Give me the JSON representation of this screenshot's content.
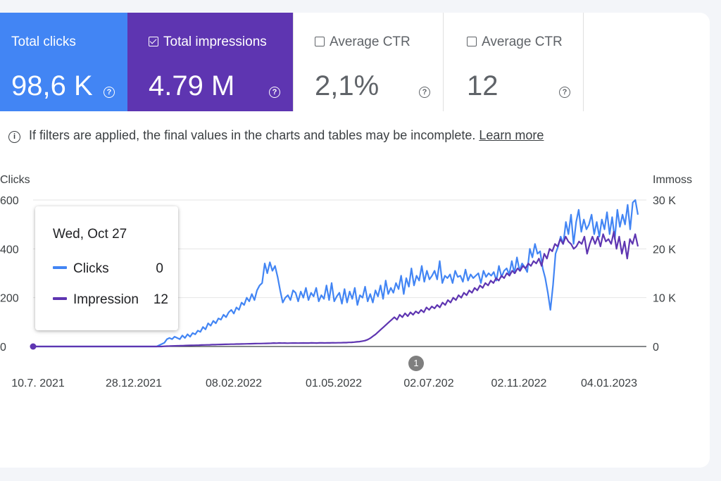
{
  "metrics": {
    "clicks": {
      "label": "Total clicks",
      "value": "98,6 K",
      "checked": true
    },
    "impressions": {
      "label": "Total impressions",
      "value": "4.79 M",
      "checked": true
    },
    "ctr": {
      "label": "Average CTR",
      "value": "2,1%",
      "checked": false
    },
    "position": {
      "label": "Average CTR",
      "value": "12",
      "checked": false
    }
  },
  "notice": {
    "text": "If filters are applied, the final values in the charts and tables may be incomplete.",
    "link": "Learn more"
  },
  "tooltip": {
    "date": "Wed, Oct 27",
    "rows": [
      {
        "name": "Clicks",
        "value": "0"
      },
      {
        "name": "Impression",
        "value": "12"
      }
    ]
  },
  "annotation_marker": "1",
  "colors": {
    "clicks": "#4285f4",
    "impressions": "#5e35b1"
  },
  "chart_data": {
    "type": "line",
    "left_axis": {
      "title": "Clicks",
      "ticks": [
        "600",
        "400",
        "200",
        "0"
      ],
      "ylim": [
        0,
        600
      ]
    },
    "right_axis": {
      "title": "Immoss",
      "ticks": [
        "30 K",
        "20 K",
        "10 K",
        "0"
      ],
      "ylim": [
        0,
        30000
      ]
    },
    "x_tick_labels": [
      "10.7. 2021",
      "28.12.2021",
      "08.02.2022",
      "01.05.2022",
      "02.07.202",
      "02.11.2022",
      "04.01.2023"
    ],
    "series": [
      {
        "name": "Clicks",
        "axis": "left",
        "values": [
          0,
          0,
          0,
          0,
          0,
          0,
          0,
          0,
          0,
          0,
          0,
          0,
          0,
          0,
          0,
          0,
          0,
          0,
          0,
          0,
          0,
          0,
          0,
          0,
          0,
          0,
          0,
          0,
          0,
          0,
          0,
          0,
          0,
          0,
          0,
          0,
          0,
          0,
          0,
          0,
          0,
          0,
          0,
          0,
          0,
          0,
          0,
          0,
          0,
          5,
          10,
          15,
          30,
          35,
          30,
          40,
          35,
          30,
          45,
          35,
          50,
          40,
          55,
          50,
          65,
          60,
          80,
          70,
          95,
          85,
          105,
          95,
          115,
          110,
          130,
          120,
          140,
          150,
          135,
          160,
          150,
          180,
          170,
          200,
          185,
          215,
          190,
          230,
          250,
          260,
          340,
          300,
          345,
          310,
          330,
          285,
          230,
          180,
          200,
          210,
          190,
          230,
          220,
          185,
          225,
          200,
          240,
          190,
          220,
          205,
          240,
          185,
          210,
          195,
          250,
          190,
          260,
          185,
          205,
          220,
          175,
          235,
          180,
          225,
          195,
          240,
          170,
          210,
          200,
          245,
          185,
          215,
          180,
          230,
          205,
          250,
          195,
          270,
          215,
          240,
          220,
          260,
          235,
          290,
          215,
          280,
          245,
          320,
          250,
          290,
          270,
          330,
          265,
          310,
          275,
          290,
          310,
          275,
          350,
          260,
          290,
          280,
          295,
          260,
          310,
          285,
          290,
          265,
          315,
          270,
          295,
          280,
          290,
          300,
          260,
          310,
          285,
          300,
          290,
          305,
          270,
          330,
          285,
          310,
          320,
          295,
          350,
          300,
          365,
          310,
          340,
          325,
          305,
          400,
          365,
          420,
          380,
          390,
          320,
          280,
          220,
          150,
          250,
          380,
          410,
          450,
          420,
          510,
          460,
          540,
          420,
          510,
          560,
          470,
          520,
          480,
          500,
          540,
          460,
          510,
          450,
          520,
          480,
          550,
          460,
          530,
          440,
          560,
          490,
          540,
          500,
          580,
          480,
          590,
          600,
          540
        ]
      },
      {
        "name": "Impressions",
        "axis": "right",
        "values": [
          0,
          0,
          0,
          0,
          0,
          0,
          0,
          0,
          0,
          0,
          0,
          0,
          0,
          0,
          0,
          0,
          0,
          0,
          0,
          0,
          0,
          0,
          0,
          0,
          0,
          0,
          0,
          0,
          0,
          0,
          0,
          0,
          0,
          0,
          0,
          0,
          0,
          0,
          0,
          0,
          0,
          0,
          0,
          0,
          0,
          0,
          0,
          0,
          0,
          50,
          70,
          90,
          110,
          130,
          150,
          160,
          180,
          200,
          210,
          230,
          250,
          260,
          280,
          300,
          320,
          330,
          350,
          370,
          380,
          400,
          420,
          430,
          440,
          460,
          470,
          480,
          500,
          510,
          520,
          540,
          550,
          560,
          570,
          590,
          600,
          610,
          620,
          640,
          650,
          660,
          700,
          680,
          720,
          690,
          700,
          680,
          690,
          700,
          710,
          690,
          700,
          720,
          710,
          700,
          730,
          720,
          710,
          740,
          730,
          720,
          750,
          740,
          760,
          750,
          770,
          760,
          790,
          800,
          830,
          850,
          900,
          950,
          1000,
          1100,
          1200,
          1400,
          1700,
          2100,
          2500,
          3000,
          3500,
          4000,
          4500,
          5000,
          5500,
          6000,
          5500,
          6500,
          6000,
          6800,
          6200,
          7000,
          6500,
          7200,
          6800,
          7500,
          7000,
          8000,
          7500,
          8200,
          7800,
          8500,
          8000,
          9000,
          8500,
          9500,
          9000,
          10000,
          9500,
          10500,
          10000,
          11000,
          10500,
          11500,
          11000,
          12000,
          11500,
          12500,
          12000,
          13000,
          12500,
          13500,
          13000,
          14000,
          13500,
          14500,
          14000,
          15000,
          14500,
          15500,
          15000,
          16000,
          15500,
          16500,
          16000,
          17000,
          16500,
          17500,
          17000,
          18000,
          16500,
          19000,
          18000,
          20000,
          19500,
          21000,
          20500,
          22000,
          21000,
          22500,
          21500,
          21000,
          20000,
          20500,
          21500,
          21000,
          22500,
          19000,
          21000,
          22500,
          21000,
          22500,
          20500,
          23000,
          21500,
          22000,
          21000,
          23500,
          20000,
          22500,
          19000,
          21500,
          18000,
          22000,
          21000,
          23000,
          20500
        ]
      }
    ]
  }
}
